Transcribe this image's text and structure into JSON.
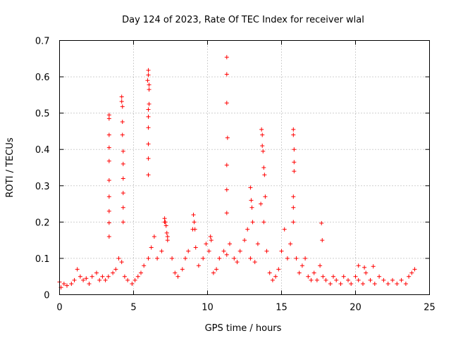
{
  "chart_data": {
    "type": "scatter",
    "title": "Day 124 of 2023, Rate Of TEC Index for receiver wlal",
    "xlabel": "GPS time / hours",
    "ylabel": "ROTI / TECUs",
    "xlim": [
      0,
      25
    ],
    "ylim": [
      0,
      0.7
    ],
    "xticks": [
      "0",
      "5",
      "10",
      "15",
      "20",
      "25"
    ],
    "yticks": [
      "0",
      "0.1",
      "0.2",
      "0.3",
      "0.4",
      "0.5",
      "0.6",
      "0.7"
    ],
    "grid": true,
    "marker": "+",
    "color": "#ff0000",
    "series": [
      {
        "x": [
          0.0,
          0.1,
          0.3,
          0.5,
          0.8,
          1.0,
          1.2,
          1.4,
          1.6,
          1.8,
          2.0,
          2.2,
          2.5,
          2.7,
          2.9,
          3.1,
          3.3,
          3.6,
          3.8,
          4.0,
          4.2,
          4.4,
          4.6,
          4.9,
          5.1,
          5.3,
          5.5,
          5.7,
          6.0,
          6.2,
          6.4,
          6.6,
          6.9,
          7.1,
          7.3,
          7.6,
          7.8,
          8.0,
          8.3,
          8.5,
          8.7,
          9.0,
          9.2,
          9.4,
          9.7,
          9.9,
          10.1,
          10.4,
          10.6,
          10.8,
          11.1,
          11.3,
          11.5,
          11.8,
          12.0,
          12.2,
          12.5,
          12.7,
          12.9,
          13.2,
          13.4,
          13.6,
          13.8,
          14.0,
          14.2,
          14.4,
          14.6,
          14.8,
          15.0,
          15.2,
          15.4,
          15.6,
          15.8,
          16.0,
          16.2,
          16.4,
          16.6,
          16.8,
          17.0,
          17.2,
          17.4,
          17.6,
          17.8,
          18.0,
          18.3,
          18.5,
          18.7,
          19.0,
          19.2,
          19.5,
          19.7,
          20.0,
          20.2,
          20.5,
          20.7,
          21.0,
          21.3,
          21.6,
          21.9,
          22.2,
          22.5,
          22.8,
          23.1,
          23.4,
          23.6,
          23.8,
          24.0,
          3.35,
          3.35,
          3.35,
          3.35,
          3.35,
          3.35,
          3.35,
          3.35,
          3.35,
          3.35,
          4.2,
          4.2,
          4.25,
          4.25,
          4.25,
          4.3,
          4.3,
          4.3,
          4.3,
          4.3,
          4.3,
          5.95,
          6.0,
          6.0,
          6.05,
          6.05,
          6.05,
          6.0,
          6.0,
          6.0,
          6.0,
          6.0,
          6.0,
          7.1,
          7.15,
          7.2,
          7.25,
          7.3,
          9.05,
          9.1,
          9.15,
          10.2,
          10.25,
          11.3,
          11.3,
          11.3,
          11.35,
          11.3,
          11.3,
          11.3,
          12.9,
          12.95,
          13.0,
          13.05,
          13.65,
          13.7,
          13.7,
          13.75,
          13.8,
          13.85,
          13.9,
          15.8,
          15.8,
          15.85,
          15.85,
          15.85,
          15.8,
          15.8,
          17.7,
          17.75,
          20.2,
          20.6,
          21.2
        ],
        "y": [
          0.035,
          0.02,
          0.03,
          0.025,
          0.03,
          0.04,
          0.07,
          0.05,
          0.04,
          0.045,
          0.03,
          0.05,
          0.06,
          0.04,
          0.05,
          0.04,
          0.05,
          0.06,
          0.07,
          0.1,
          0.09,
          0.05,
          0.04,
          0.03,
          0.04,
          0.05,
          0.06,
          0.08,
          0.1,
          0.13,
          0.16,
          0.1,
          0.12,
          0.2,
          0.16,
          0.1,
          0.06,
          0.05,
          0.07,
          0.1,
          0.12,
          0.18,
          0.13,
          0.08,
          0.1,
          0.14,
          0.12,
          0.06,
          0.07,
          0.1,
          0.12,
          0.11,
          0.14,
          0.1,
          0.09,
          0.12,
          0.15,
          0.18,
          0.1,
          0.09,
          0.14,
          0.25,
          0.2,
          0.12,
          0.06,
          0.04,
          0.05,
          0.07,
          0.12,
          0.18,
          0.1,
          0.14,
          0.2,
          0.1,
          0.06,
          0.08,
          0.1,
          0.05,
          0.04,
          0.06,
          0.04,
          0.08,
          0.05,
          0.04,
          0.03,
          0.05,
          0.04,
          0.03,
          0.05,
          0.04,
          0.03,
          0.05,
          0.04,
          0.03,
          0.06,
          0.04,
          0.03,
          0.05,
          0.04,
          0.03,
          0.04,
          0.03,
          0.04,
          0.03,
          0.05,
          0.06,
          0.07,
          0.495,
          0.485,
          0.44,
          0.405,
          0.368,
          0.315,
          0.27,
          0.23,
          0.198,
          0.16,
          0.545,
          0.532,
          0.518,
          0.476,
          0.44,
          0.395,
          0.36,
          0.32,
          0.28,
          0.24,
          0.2,
          0.59,
          0.605,
          0.618,
          0.578,
          0.565,
          0.525,
          0.51,
          0.49,
          0.46,
          0.415,
          0.375,
          0.33,
          0.21,
          0.2,
          0.19,
          0.17,
          0.15,
          0.22,
          0.2,
          0.18,
          0.16,
          0.15,
          0.654,
          0.607,
          0.528,
          0.432,
          0.357,
          0.289,
          0.225,
          0.295,
          0.26,
          0.24,
          0.2,
          0.455,
          0.44,
          0.41,
          0.395,
          0.35,
          0.33,
          0.27,
          0.455,
          0.44,
          0.4,
          0.365,
          0.34,
          0.27,
          0.24,
          0.197,
          0.15,
          0.08,
          0.075,
          0.078
        ]
      }
    ]
  }
}
